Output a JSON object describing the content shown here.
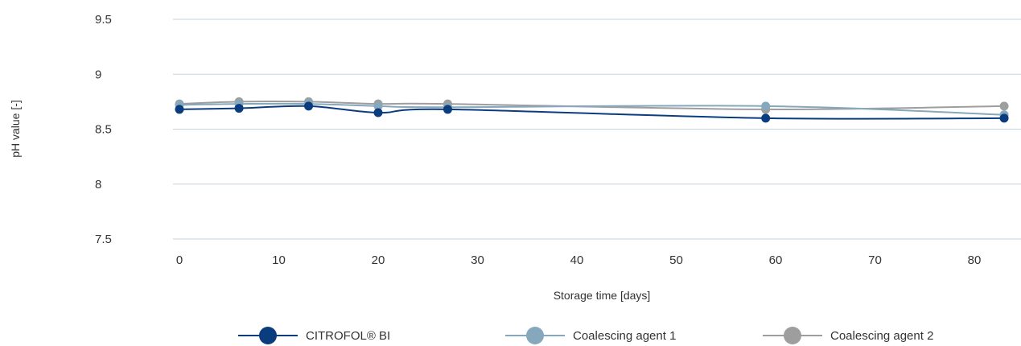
{
  "chart_data": {
    "type": "line",
    "xlabel": "Storage time [days]",
    "ylabel": "pH value [-]",
    "xlim": [
      0,
      84
    ],
    "ylim": [
      7.5,
      9.5
    ],
    "xticks": [
      "0",
      "10",
      "20",
      "30",
      "40",
      "50",
      "60",
      "70",
      "80"
    ],
    "yticks": [
      "9.5",
      "9",
      "8.5",
      "8",
      "7.5"
    ],
    "grid": "horizontal",
    "legend_position": "bottom",
    "x": [
      0,
      6,
      13,
      20,
      27,
      59,
      83
    ],
    "series": [
      {
        "name": "CITROFOL® BI",
        "color": "#0b3d7e",
        "values": [
          8.68,
          8.69,
          8.71,
          8.65,
          8.68,
          8.6,
          8.6
        ]
      },
      {
        "name": "Coalescing agent 1",
        "color": "#86a8bd",
        "values": [
          8.72,
          8.73,
          8.73,
          8.71,
          8.7,
          8.71,
          8.63
        ]
      },
      {
        "name": "Coalescing agent 2",
        "color": "#9e9e9e",
        "values": [
          8.73,
          8.75,
          8.75,
          8.73,
          8.73,
          8.68,
          8.71
        ]
      }
    ]
  }
}
